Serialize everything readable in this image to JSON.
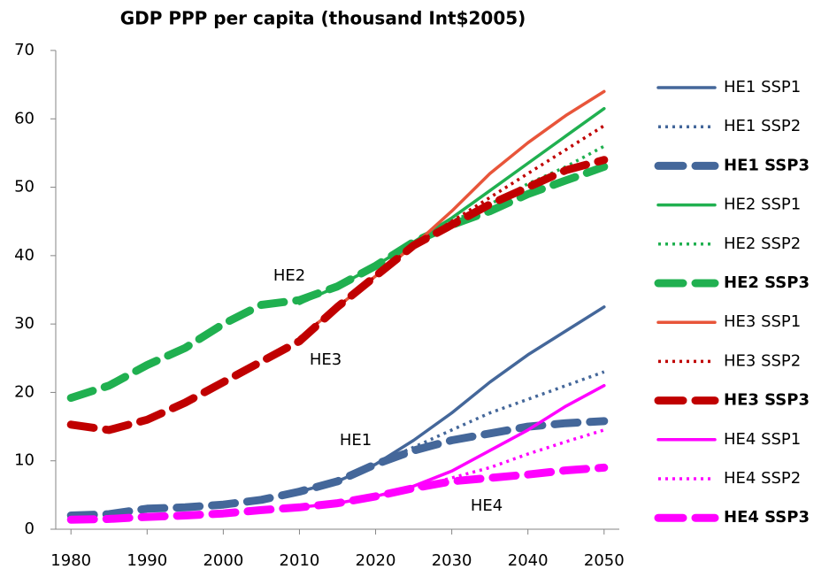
{
  "chart_data": {
    "type": "line",
    "title": "GDP PPP per capita (thousand Int$2005)",
    "x": [
      1980,
      1985,
      1990,
      1995,
      2000,
      2005,
      2010,
      2015,
      2020,
      2025,
      2030,
      2035,
      2040,
      2045,
      2050
    ],
    "xlim": [
      1978,
      2052
    ],
    "xticks": [
      1980,
      1990,
      2000,
      2010,
      2020,
      2030,
      2040,
      2050
    ],
    "ylim": [
      0,
      70
    ],
    "yticks": [
      0,
      10,
      20,
      30,
      40,
      50,
      60,
      70
    ],
    "grid": false,
    "legend": "right",
    "annotations": [
      "HE2",
      "HE3",
      "HE1",
      "HE4"
    ],
    "series": [
      {
        "name": "HE1 SSP1",
        "color": "#44679a",
        "dash": "solid",
        "bold": false,
        "values": [
          null,
          null,
          null,
          null,
          null,
          null,
          5.5,
          7,
          9.5,
          13,
          17,
          21.5,
          25.5,
          29,
          32.5
        ]
      },
      {
        "name": "HE1 SSP2",
        "color": "#44679a",
        "dash": "dotted",
        "bold": false,
        "values": [
          null,
          null,
          null,
          null,
          null,
          null,
          5.5,
          7,
          9.5,
          12,
          14.5,
          17,
          19,
          21,
          23
        ]
      },
      {
        "name": "HE1 SSP3",
        "color": "#44679a",
        "dash": "dashed",
        "bold": true,
        "values": [
          2,
          2.2,
          3,
          3.2,
          3.6,
          4.3,
          5.5,
          7,
          9.5,
          11.5,
          13,
          14,
          15,
          15.5,
          15.8
        ]
      },
      {
        "name": "HE2 SSP1",
        "color": "#20b050",
        "dash": "solid",
        "bold": false,
        "values": [
          null,
          null,
          null,
          null,
          null,
          null,
          33,
          35.5,
          38.5,
          42,
          45.5,
          49.5,
          53.5,
          57.5,
          61.5
        ]
      },
      {
        "name": "HE2 SSP2",
        "color": "#20b050",
        "dash": "dotted",
        "bold": false,
        "values": [
          null,
          null,
          null,
          null,
          null,
          null,
          33,
          35.5,
          38.5,
          42,
          45,
          47.5,
          50.5,
          53,
          56
        ]
      },
      {
        "name": "HE2 SSP3",
        "color": "#20b050",
        "dash": "dashed",
        "bold": true,
        "values": [
          19.2,
          21,
          24,
          26.5,
          30,
          32.8,
          33.5,
          35.5,
          38.5,
          42,
          44.5,
          46.5,
          49,
          51,
          53
        ]
      },
      {
        "name": "HE3 SSP1",
        "color": "#e8553a",
        "dash": "solid",
        "bold": false,
        "values": [
          null,
          null,
          null,
          null,
          null,
          null,
          28,
          32.5,
          37,
          41.5,
          46.5,
          52,
          56.5,
          60.5,
          64
        ]
      },
      {
        "name": "HE3 SSP2",
        "color": "#c00000",
        "dash": "dotted",
        "bold": false,
        "values": [
          null,
          null,
          null,
          null,
          null,
          null,
          28,
          32.5,
          37,
          41.5,
          45,
          48.5,
          52,
          55.5,
          59
        ]
      },
      {
        "name": "HE3 SSP3",
        "color": "#c00000",
        "dash": "dashed",
        "bold": true,
        "values": [
          15.3,
          14.5,
          16,
          18.5,
          21.5,
          24.5,
          27.5,
          32.5,
          37,
          41.5,
          44.5,
          47.5,
          50,
          52.5,
          54
        ]
      },
      {
        "name": "HE4 SSP1",
        "color": "#ff00ff",
        "dash": "solid",
        "bold": false,
        "values": [
          null,
          null,
          null,
          null,
          null,
          null,
          3.2,
          3.8,
          4.8,
          6.3,
          8.5,
          11.5,
          14.5,
          18,
          21
        ]
      },
      {
        "name": "HE4 SSP2",
        "color": "#ff00ff",
        "dash": "dotted",
        "bold": false,
        "values": [
          null,
          null,
          null,
          null,
          null,
          null,
          3.2,
          3.8,
          4.8,
          6,
          7.5,
          9,
          11,
          12.8,
          14.5
        ]
      },
      {
        "name": "HE4 SSP3",
        "color": "#ff00ff",
        "dash": "dashed",
        "bold": true,
        "values": [
          1.4,
          1.5,
          1.8,
          2,
          2.3,
          2.8,
          3.2,
          3.8,
          4.8,
          6,
          7,
          7.5,
          8,
          8.6,
          9
        ]
      }
    ]
  }
}
